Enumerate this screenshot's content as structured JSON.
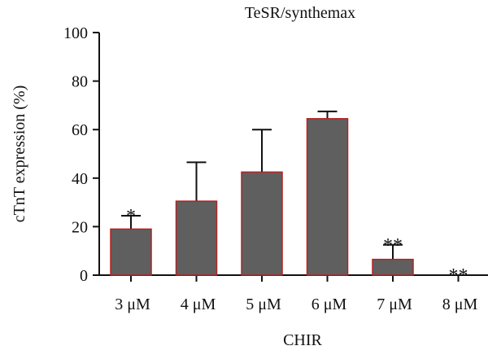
{
  "chart_data": {
    "type": "bar",
    "title": "TeSR/synthemax",
    "xlabel": "CHIR",
    "ylabel": "cTnT expression (%)",
    "ylim": [
      0,
      100
    ],
    "yticks": [
      0,
      20,
      40,
      60,
      80,
      100
    ],
    "grid": false,
    "categories": [
      "3 μM",
      "4 μM",
      "5 μM",
      "6 μM",
      "7 μM",
      "8 μM"
    ],
    "values": [
      19,
      30.5,
      42.5,
      64.5,
      6.5,
      0
    ],
    "errors": [
      5.5,
      16,
      17.5,
      3,
      6,
      0
    ],
    "significance": [
      "*",
      "",
      "",
      "",
      "**",
      "**"
    ],
    "colors": {
      "bar_fill": "#5f5f5f",
      "bar_edge": "#b22222",
      "axis": "#111111"
    }
  }
}
